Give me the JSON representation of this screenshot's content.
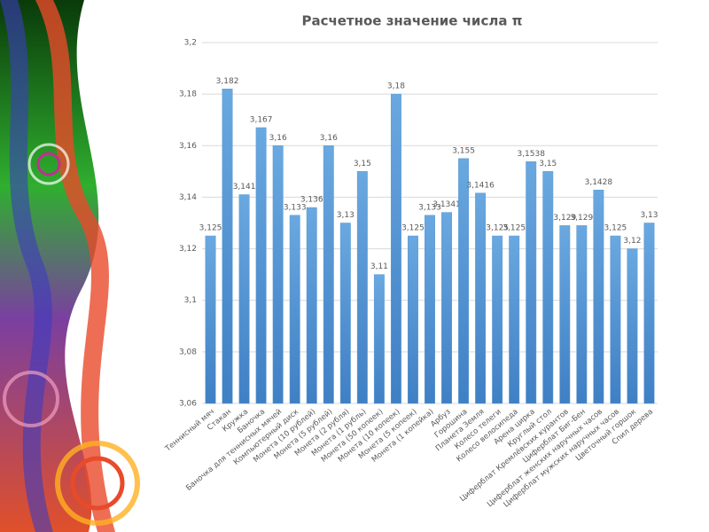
{
  "chart_data": {
    "type": "bar",
    "title": "Расчетное значение числа π",
    "categories": [
      "Теннисный мяч",
      "Стакан",
      "Кружка",
      "Баночка",
      "Баночка для теннисных мячей",
      "Компьютерный диск",
      "Монета (10 рублей)",
      "Монета (5 рублей)",
      "Монета (2 рубля)",
      "Монета (1 рубль)",
      "Монета (50 копеек)",
      "Монета (10 копеек)",
      "Монета (5 копеек)",
      "Монета (1 копейка)",
      "Арбуз",
      "Горошина",
      "Планета Земля",
      "Колесо телеги",
      "Колесо велосипеда",
      "Арена цирка",
      "Круглый стол",
      "Циферблат Кремлёвских курантов",
      "Циферблат Биг-Бен",
      "Циферблат женских наручных часов",
      "Циферблат мужских наручных часов",
      "Цветочный горшок",
      "Спил дерева"
    ],
    "values": [
      3.125,
      3.182,
      3.141,
      3.167,
      3.16,
      3.133,
      3.136,
      3.16,
      3.13,
      3.15,
      3.11,
      3.18,
      3.125,
      3.133,
      3.1341,
      3.155,
      3.1416,
      3.125,
      3.125,
      3.1538,
      3.15,
      3.129,
      3.129,
      3.1428,
      3.125,
      3.12,
      3.13
    ],
    "value_labels": [
      "3,125",
      "3,182",
      "3,141",
      "3,167",
      "3,16",
      "3,133",
      "3,136",
      "3,16",
      "3,13",
      "3,15",
      "3,11",
      "3,18",
      "3,125",
      "3,133",
      "3,1341",
      "3,155",
      "3,1416",
      "3,125",
      "3,125",
      "3,1538",
      "3,15",
      "3,129",
      "3,129",
      "3,1428",
      "3,125",
      "3,12",
      "3,13"
    ],
    "color": "#5b9bd5",
    "ylim": [
      3.06,
      3.2
    ],
    "yticks": [
      {
        "value": 3.06,
        "label": "3,06"
      },
      {
        "value": 3.08,
        "label": "3,08"
      },
      {
        "value": 3.1,
        "label": "3,1"
      },
      {
        "value": 3.12,
        "label": "3,12"
      },
      {
        "value": 3.14,
        "label": "3,14"
      },
      {
        "value": 3.16,
        "label": "3,16"
      },
      {
        "value": 3.18,
        "label": "3,18"
      },
      {
        "value": 3.2,
        "label": "3,2"
      }
    ],
    "grid": true
  }
}
